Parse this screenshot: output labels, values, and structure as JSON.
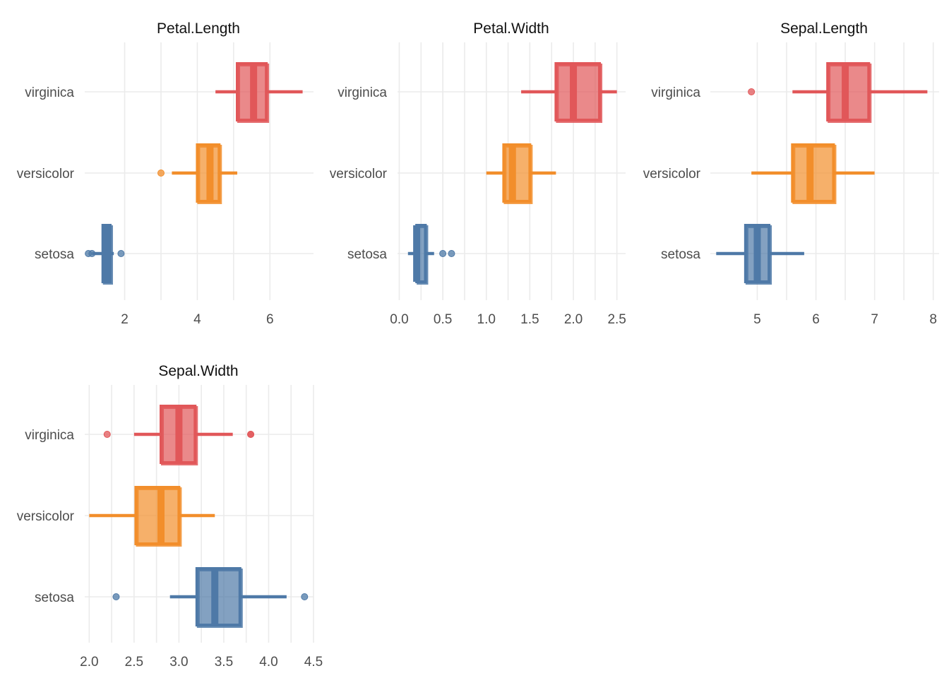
{
  "colors": {
    "setosa": "#4e79a7",
    "versicolor": "#f28e2b",
    "virginica": "#e15759",
    "grid": "#ebebeb",
    "text": "#4d4d4d",
    "title": "#111111"
  },
  "chart_data": [
    {
      "type": "boxplot",
      "title": "Petal.Length",
      "categories": [
        "virginica",
        "versicolor",
        "setosa"
      ],
      "xlim": [
        0.9,
        7.2
      ],
      "ticks": [
        {
          "value": 2,
          "label": "2"
        },
        {
          "value": 4,
          "label": "4"
        },
        {
          "value": 6,
          "label": "6"
        }
      ],
      "boxes": [
        {
          "group": "virginica",
          "min": 4.5,
          "q1": 5.1,
          "median": 5.55,
          "q3": 5.9,
          "max": 6.9,
          "outliers": []
        },
        {
          "group": "versicolor",
          "min": 3.3,
          "q1": 4.0,
          "median": 4.35,
          "q3": 4.6,
          "max": 5.1,
          "outliers": [
            3.0
          ]
        },
        {
          "group": "setosa",
          "min": 1.1,
          "q1": 1.4,
          "median": 1.5,
          "q3": 1.6,
          "max": 1.7,
          "outliers": [
            1.0,
            1.1,
            1.9
          ]
        }
      ]
    },
    {
      "type": "boxplot",
      "title": "Petal.Width",
      "categories": [
        "virginica",
        "versicolor",
        "setosa"
      ],
      "xlim": [
        -0.02,
        2.6
      ],
      "ticks": [
        {
          "value": 0.0,
          "label": "0.0"
        },
        {
          "value": 0.5,
          "label": "0.5"
        },
        {
          "value": 1.0,
          "label": "1.0"
        },
        {
          "value": 1.5,
          "label": "1.5"
        },
        {
          "value": 2.0,
          "label": "2.0"
        },
        {
          "value": 2.5,
          "label": "2.5"
        }
      ],
      "boxes": [
        {
          "group": "virginica",
          "min": 1.4,
          "q1": 1.8,
          "median": 2.0,
          "q3": 2.3,
          "max": 2.5,
          "outliers": []
        },
        {
          "group": "versicolor",
          "min": 1.0,
          "q1": 1.2,
          "median": 1.3,
          "q3": 1.5,
          "max": 1.8,
          "outliers": []
        },
        {
          "group": "setosa",
          "min": 0.1,
          "q1": 0.2,
          "median": 0.2,
          "q3": 0.3,
          "max": 0.4,
          "outliers": [
            0.5,
            0.6
          ]
        }
      ]
    },
    {
      "type": "boxplot",
      "title": "Sepal.Length",
      "categories": [
        "virginica",
        "versicolor",
        "setosa"
      ],
      "xlim": [
        4.2,
        8.1
      ],
      "ticks": [
        {
          "value": 5,
          "label": "5"
        },
        {
          "value": 6,
          "label": "6"
        },
        {
          "value": 7,
          "label": "7"
        },
        {
          "value": 8,
          "label": "8"
        }
      ],
      "boxes": [
        {
          "group": "virginica",
          "min": 5.6,
          "q1": 6.2,
          "median": 6.5,
          "q3": 6.9,
          "max": 7.9,
          "outliers": [
            4.9
          ]
        },
        {
          "group": "versicolor",
          "min": 4.9,
          "q1": 5.6,
          "median": 5.9,
          "q3": 6.3,
          "max": 7.0,
          "outliers": []
        },
        {
          "group": "setosa",
          "min": 4.3,
          "q1": 4.8,
          "median": 5.0,
          "q3": 5.2,
          "max": 5.8,
          "outliers": []
        }
      ]
    },
    {
      "type": "boxplot",
      "title": "Sepal.Width",
      "categories": [
        "virginica",
        "versicolor",
        "setosa"
      ],
      "xlim": [
        1.95,
        4.5
      ],
      "ticks": [
        {
          "value": 2.0,
          "label": "2.0"
        },
        {
          "value": 2.5,
          "label": "2.5"
        },
        {
          "value": 3.0,
          "label": "3.0"
        },
        {
          "value": 3.5,
          "label": "3.5"
        },
        {
          "value": 4.0,
          "label": "4.0"
        },
        {
          "value": 4.5,
          "label": "4.5"
        }
      ],
      "boxes": [
        {
          "group": "virginica",
          "min": 2.5,
          "q1": 2.8,
          "median": 3.0,
          "q3": 3.18,
          "max": 3.6,
          "outliers": [
            2.2,
            3.8,
            3.8
          ]
        },
        {
          "group": "versicolor",
          "min": 2.0,
          "q1": 2.52,
          "median": 2.8,
          "q3": 3.0,
          "max": 3.4,
          "outliers": []
        },
        {
          "group": "setosa",
          "min": 2.9,
          "q1": 3.2,
          "median": 3.4,
          "q3": 3.68,
          "max": 4.2,
          "outliers": [
            2.3,
            4.4
          ]
        }
      ]
    }
  ]
}
